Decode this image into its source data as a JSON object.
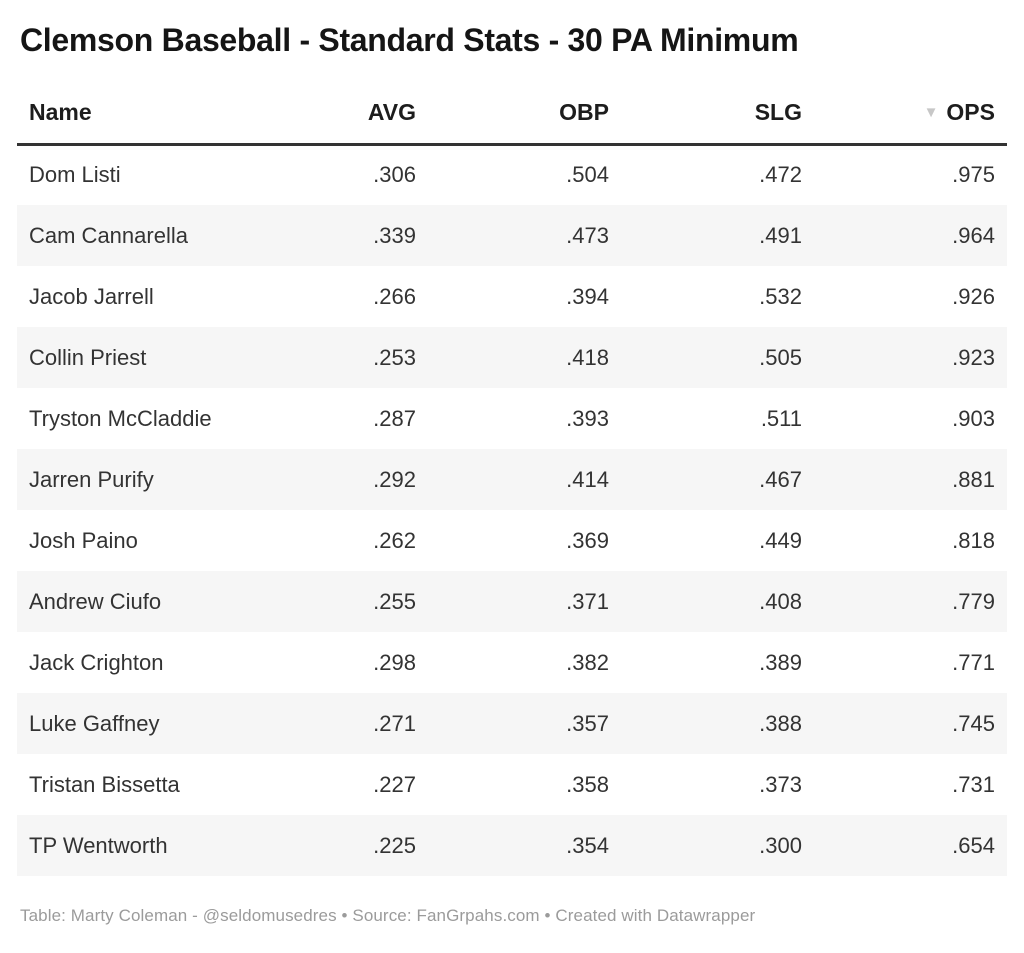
{
  "title": "Clemson Baseball - Standard Stats - 30 PA Minimum",
  "table": {
    "columns": [
      {
        "id": "name",
        "label": "Name",
        "align": "left",
        "sortable": true
      },
      {
        "id": "avg",
        "label": "AVG",
        "align": "right",
        "sortable": true
      },
      {
        "id": "obp",
        "label": "OBP",
        "align": "right",
        "sortable": true
      },
      {
        "id": "slg",
        "label": "SLG",
        "align": "right",
        "sortable": true
      },
      {
        "id": "ops",
        "label": "OPS",
        "align": "right",
        "sortable": true,
        "sorted": "desc",
        "sort_icon": "▼"
      }
    ],
    "rows": [
      {
        "name": "Dom Listi",
        "avg": ".306",
        "obp": ".504",
        "slg": ".472",
        "ops": ".975"
      },
      {
        "name": "Cam Cannarella",
        "avg": ".339",
        "obp": ".473",
        "slg": ".491",
        "ops": ".964"
      },
      {
        "name": "Jacob Jarrell",
        "avg": ".266",
        "obp": ".394",
        "slg": ".532",
        "ops": ".926"
      },
      {
        "name": "Collin Priest",
        "avg": ".253",
        "obp": ".418",
        "slg": ".505",
        "ops": ".923"
      },
      {
        "name": "Tryston McCladdie",
        "avg": ".287",
        "obp": ".393",
        "slg": ".511",
        "ops": ".903"
      },
      {
        "name": "Jarren Purify",
        "avg": ".292",
        "obp": ".414",
        "slg": ".467",
        "ops": ".881"
      },
      {
        "name": "Josh Paino",
        "avg": ".262",
        "obp": ".369",
        "slg": ".449",
        "ops": ".818"
      },
      {
        "name": "Andrew Ciufo",
        "avg": ".255",
        "obp": ".371",
        "slg": ".408",
        "ops": ".779"
      },
      {
        "name": "Jack Crighton",
        "avg": ".298",
        "obp": ".382",
        "slg": ".389",
        "ops": ".771"
      },
      {
        "name": "Luke Gaffney",
        "avg": ".271",
        "obp": ".357",
        "slg": ".388",
        "ops": ".745"
      },
      {
        "name": "Tristan Bissetta",
        "avg": ".227",
        "obp": ".358",
        "slg": ".373",
        "ops": ".731"
      },
      {
        "name": "TP Wentworth",
        "avg": ".225",
        "obp": ".354",
        "slg": ".300",
        "ops": ".654"
      }
    ]
  },
  "footer": {
    "text": "Table: Marty Coleman - @seldomusedres • Source: FanGrpahs.com • Created with Datawrapper"
  },
  "colors": {
    "background": "#ffffff",
    "title_text": "#151515",
    "text": "#333333",
    "header_border": "#333333",
    "stripe": "#f6f6f6",
    "sort_icon": "#c7c7c7",
    "footer_text": "#9b9b9b"
  },
  "chart_data": {
    "type": "table",
    "title": "Clemson Baseball - Standard Stats - 30 PA Minimum",
    "columns": [
      "Name",
      "AVG",
      "OBP",
      "SLG",
      "OPS"
    ],
    "rows": [
      [
        "Dom Listi",
        0.306,
        0.504,
        0.472,
        0.975
      ],
      [
        "Cam Cannarella",
        0.339,
        0.473,
        0.491,
        0.964
      ],
      [
        "Jacob Jarrell",
        0.266,
        0.394,
        0.532,
        0.926
      ],
      [
        "Collin Priest",
        0.253,
        0.418,
        0.505,
        0.923
      ],
      [
        "Tryston McCladdie",
        0.287,
        0.393,
        0.511,
        0.903
      ],
      [
        "Jarren Purify",
        0.292,
        0.414,
        0.467,
        0.881
      ],
      [
        "Josh Paino",
        0.262,
        0.369,
        0.449,
        0.818
      ],
      [
        "Andrew Ciufo",
        0.255,
        0.371,
        0.408,
        0.779
      ],
      [
        "Jack Crighton",
        0.298,
        0.382,
        0.389,
        0.771
      ],
      [
        "Luke Gaffney",
        0.271,
        0.357,
        0.388,
        0.745
      ],
      [
        "Tristan Bissetta",
        0.227,
        0.358,
        0.373,
        0.731
      ],
      [
        "TP Wentworth",
        0.225,
        0.354,
        0.3,
        0.654
      ]
    ],
    "sort": {
      "column": "OPS",
      "direction": "desc"
    },
    "row_striping": true,
    "footnote": "Table: Marty Coleman - @seldomusedres • Source: FanGrpahs.com • Created with Datawrapper"
  }
}
